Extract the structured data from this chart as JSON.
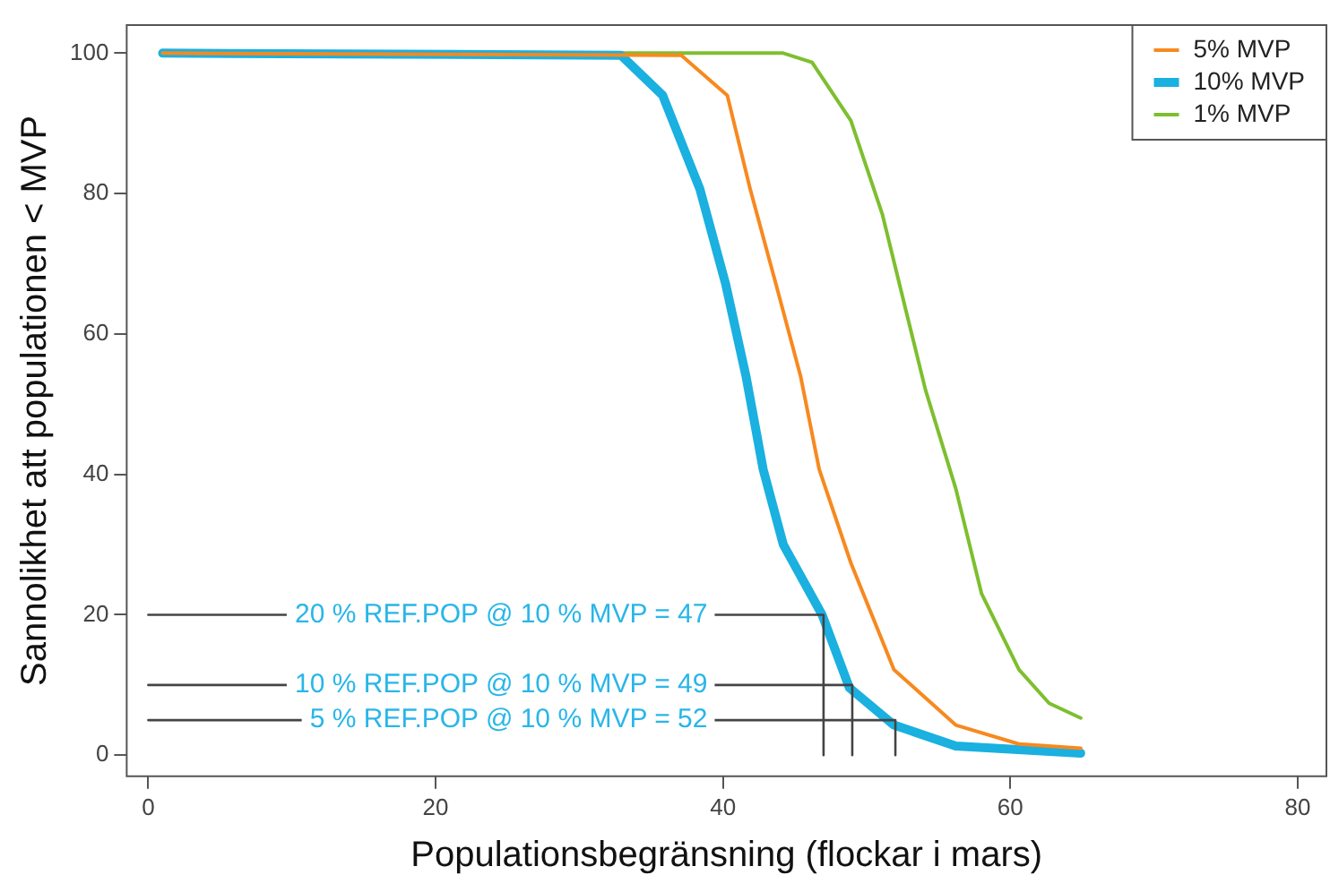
{
  "chart_data": {
    "type": "line",
    "xlabel": "Populationsbegränsning (flockar i mars)",
    "ylabel": "Sannolikhet att populationen < MVP",
    "xlim": [
      -1.5,
      82
    ],
    "ylim": [
      -3,
      104
    ],
    "xticks": [
      0,
      20,
      40,
      60,
      80
    ],
    "yticks": [
      0,
      20,
      40,
      60,
      80,
      100
    ],
    "grid": false,
    "legend": "top right",
    "marker": "none",
    "line_style": "solid",
    "series": [
      {
        "name": "5% MVP",
        "color": "#f7891f",
        "x": [
          1,
          37.1,
          40.3,
          41.9,
          43.7,
          45.4,
          46.7,
          48.9,
          51.9,
          56.2,
          60.6,
          64.9
        ],
        "values": [
          100,
          99.7,
          94,
          80.6,
          67,
          54,
          40.7,
          27.4,
          12.2,
          4.3,
          1.6,
          1
        ]
      },
      {
        "name": "10% MVP",
        "color": "#1ab0e0",
        "x": [
          1,
          32.9,
          35.8,
          38.4,
          40.2,
          41.6,
          42.8,
          44.2,
          46.9,
          48.8,
          51.9,
          56.2,
          64.9
        ],
        "values": [
          100,
          99.7,
          94,
          80.6,
          67,
          54,
          40.7,
          30,
          20,
          9.6,
          4.3,
          1.3,
          0.3
        ]
      },
      {
        "name": "1% MVP",
        "color": "#7dbf2f",
        "x": [
          1,
          44.2,
          46.2,
          48.9,
          51.1,
          52.8,
          54.1,
          56.2,
          58,
          60.6,
          62.7,
          64.9
        ],
        "values": [
          100,
          100,
          98.7,
          90.4,
          77,
          62.8,
          52,
          38,
          23,
          12.2,
          7.4,
          5.3
        ]
      },
      {
        "color": "#444444",
        "x": [
          0,
          47,
          47
        ],
        "values": [
          20,
          20,
          0
        ]
      },
      {
        "color": "#444444",
        "x": [
          0,
          49,
          49
        ],
        "values": [
          10,
          10,
          0
        ]
      },
      {
        "color": "#444444",
        "x": [
          0,
          52,
          52
        ],
        "values": [
          5,
          5,
          0
        ]
      }
    ],
    "annotations": [
      "20 % REF.POP @ 10 % MVP = 47",
      "10 % REF.POP @ 10 % MVP = 49",
      "5 % REF.POP @ 10 % MVP = 52"
    ]
  }
}
